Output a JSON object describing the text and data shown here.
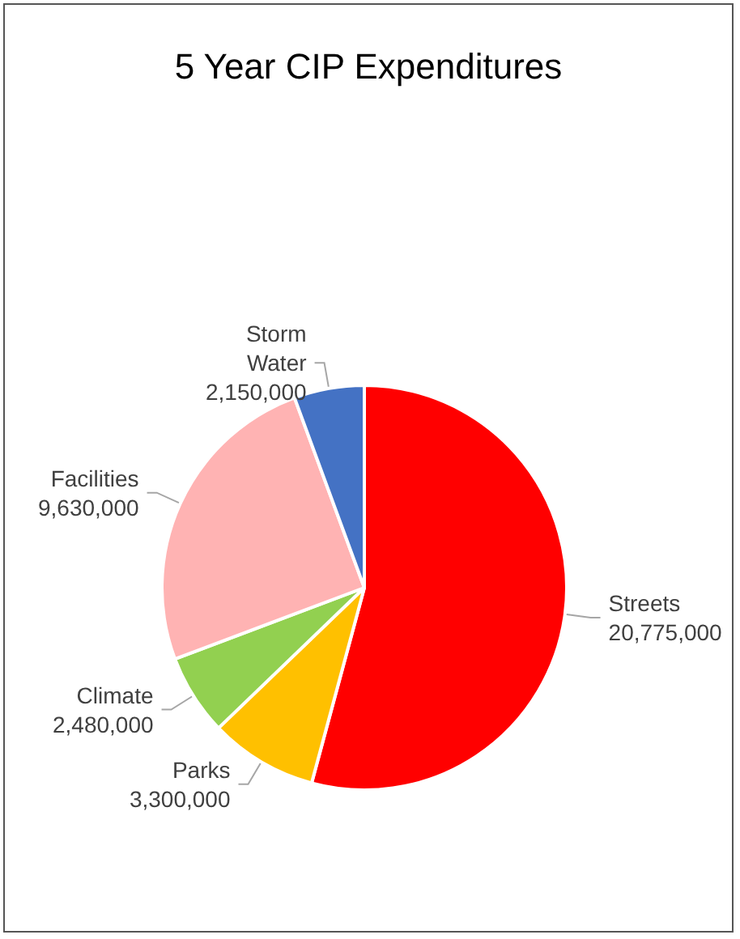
{
  "chart_data": {
    "type": "pie",
    "title": "5 Year CIP Expenditures",
    "categories": [
      "Streets",
      "Parks",
      "Climate",
      "Facilities",
      "Storm Water"
    ],
    "values": [
      20775000,
      3300000,
      2480000,
      9630000,
      2150000
    ],
    "colors": [
      "#ff0000",
      "#ffc000",
      "#92d050",
      "#ffb3b3",
      "#4472c4"
    ],
    "value_labels": [
      "20,775,000",
      "3,300,000",
      "2,480,000",
      "9,630,000",
      "2,150,000"
    ],
    "legend": false
  }
}
